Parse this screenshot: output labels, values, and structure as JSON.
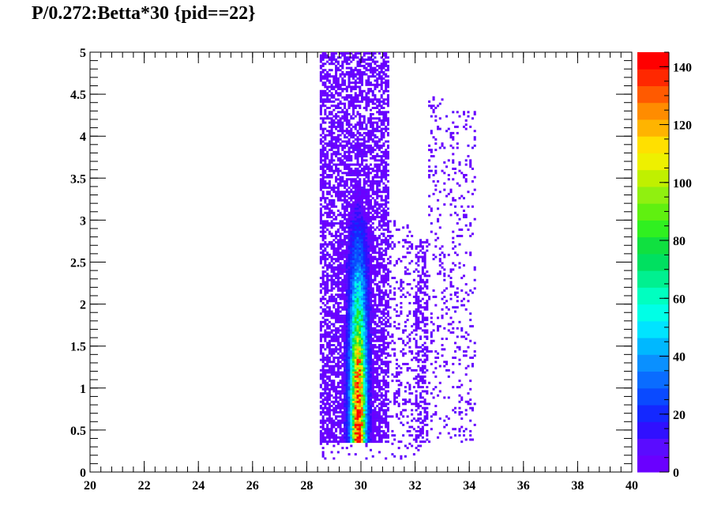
{
  "chart_data": {
    "type": "heatmap",
    "title": "P/0.272:Betta*30 {pid==22}",
    "xlabel": "",
    "ylabel": "",
    "xlim": [
      20,
      40
    ],
    "ylim": [
      0,
      5
    ],
    "x_ticks": [
      "20",
      "22",
      "24",
      "26",
      "28",
      "30",
      "32",
      "34",
      "36",
      "38",
      "40"
    ],
    "y_ticks": [
      "0",
      "0.5",
      "1",
      "1.5",
      "2",
      "2.5",
      "3",
      "3.5",
      "4",
      "4.5",
      "5"
    ],
    "z_range": [
      0,
      145
    ],
    "colorbar_ticks": [
      "0",
      "20",
      "40",
      "60",
      "80",
      "100",
      "120",
      "140"
    ],
    "palette": [
      "#6a00ff",
      "#5a0cff",
      "#3010ff",
      "#1428ff",
      "#0a4aff",
      "#0a6cff",
      "#0a90ff",
      "#00b8ff",
      "#00e4ff",
      "#00ffe6",
      "#00ffc0",
      "#00f090",
      "#00e060",
      "#10e040",
      "#30f020",
      "#60f010",
      "#90f010",
      "#c0f000",
      "#eef000",
      "#ffe000",
      "#ffb400",
      "#ff8c00",
      "#ff5a00",
      "#ff2800",
      "#ff0000"
    ],
    "features": {
      "main_band": {
        "x_center": 29.9,
        "width": 0.35,
        "y_range": [
          0.35,
          5
        ],
        "peak_value": 140,
        "peak_y_range": [
          0.4,
          1.5
        ]
      },
      "diffuse_region": {
        "x_range": [
          28.5,
          31.0
        ],
        "y_range": [
          0.35,
          5
        ]
      },
      "secondary_band": {
        "x_range": [
          32.0,
          32.5
        ],
        "y_range": [
          0.35,
          2.8
        ]
      },
      "sparse_tail": {
        "x_range": [
          33.0,
          34.2
        ],
        "y_range": [
          0.35,
          4.3
        ]
      }
    }
  }
}
